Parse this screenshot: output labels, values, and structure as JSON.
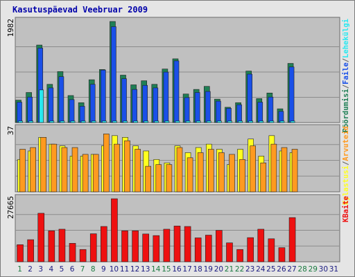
{
  "title": "Kasutuspäevad Veebruar 2009",
  "colors": {
    "title": "#0000aa",
    "panel": "#c0c0c0",
    "grid": "#8c8c8c",
    "hits": "#1f7f55",
    "files": "#1a50e8",
    "pages": "#28e8f0",
    "visits": "#ffff20",
    "sites": "#ff9a20",
    "kbytes": "#ee1010",
    "day_weekday": "#1a1a80",
    "day_weekend": "#1a7a40"
  },
  "chart_data": {
    "type": "bar",
    "x_ticks": [
      "1",
      "2",
      "3",
      "4",
      "5",
      "6",
      "7",
      "8",
      "9",
      "10",
      "11",
      "12",
      "13",
      "14",
      "15",
      "16",
      "17",
      "18",
      "19",
      "20",
      "21",
      "22",
      "23",
      "24",
      "25",
      "26",
      "27",
      "28",
      "29",
      "30",
      "31"
    ],
    "weekend_days": [
      1,
      7,
      8,
      14,
      15,
      21,
      22,
      28,
      29
    ],
    "panels": [
      {
        "name": "requests",
        "ymax_label": "1982",
        "ymax": 1982,
        "legend": [
          {
            "text": "Pöördumisi",
            "color": "#1f7f55"
          },
          {
            "text": "/",
            "color": "#606060"
          },
          {
            "text": "Faile",
            "color": "#1a50e8"
          },
          {
            "text": "/",
            "color": "#606060"
          },
          {
            "text": "Lehekülgi",
            "color": "#28e8f0"
          }
        ],
        "series": [
          {
            "name": "Pöördumisi",
            "values": [
              440,
              590,
              1520,
              750,
              1000,
              530,
              390,
              840,
              1040,
              1982,
              930,
              740,
              820,
              750,
              1050,
              1250,
              560,
              650,
              710,
              460,
              300,
              390,
              1010,
              470,
              580,
              270,
              1160,
              null,
              null,
              null,
              null
            ]
          },
          {
            "name": "Faile",
            "values": [
              400,
              500,
              1460,
              680,
              900,
              450,
              320,
              750,
              1030,
              1880,
              860,
              650,
              730,
              680,
              990,
              1210,
              490,
              590,
              610,
              420,
              280,
              350,
              950,
              400,
              500,
              220,
              1090,
              null,
              null,
              null,
              null
            ]
          },
          {
            "name": "Lehekülgi",
            "values": [
              30,
              30,
              640,
              30,
              30,
              30,
              30,
              30,
              30,
              30,
              30,
              30,
              30,
              30,
              30,
              30,
              30,
              30,
              30,
              30,
              30,
              30,
              30,
              30,
              30,
              30,
              30,
              null,
              null,
              null,
              null
            ]
          }
        ]
      },
      {
        "name": "visits",
        "ymax_label": "37",
        "ymax": 37,
        "legend": [
          {
            "text": "Kylastusi",
            "color": "#ffff20"
          },
          {
            "text": "/",
            "color": "#606060"
          },
          {
            "text": "Arvuteid",
            "color": "#ff9a20"
          }
        ],
        "series": [
          {
            "name": "Kylastusi",
            "values": [
              19,
              24,
              32,
              28,
              27,
              21,
              21,
              22,
              27,
              33,
              32,
              27,
              24,
              19,
              17,
              27,
              23,
              26,
              28,
              25,
              16,
              25,
              31,
              21,
              33,
              24,
              23,
              null,
              null,
              null,
              null
            ]
          },
          {
            "name": "Arvuteid",
            "values": [
              25,
              26,
              32,
              28,
              26,
              26,
              22,
              22,
              34,
              28,
              30,
              25,
              15,
              16,
              16,
              26,
              20,
              23,
              25,
              23,
              22,
              19,
              27,
              17,
              28,
              26,
              25,
              null,
              null,
              null,
              null
            ]
          }
        ]
      },
      {
        "name": "kbytes",
        "ymax_label": "27665",
        "ymax": 27665,
        "legend": [
          {
            "text": "KBaite",
            "color": "#ee1010"
          }
        ],
        "series": [
          {
            "name": "KBaite",
            "values": [
              7500,
              9700,
              21300,
              13600,
              14300,
              8100,
              5400,
              12300,
              15500,
              27665,
              13600,
              13600,
              12200,
              11500,
              14300,
              15700,
              15500,
              10500,
              11700,
              13800,
              8300,
              5400,
              10600,
              14300,
              10100,
              6200,
              19400,
              null,
              null,
              null,
              null
            ]
          }
        ]
      }
    ]
  }
}
